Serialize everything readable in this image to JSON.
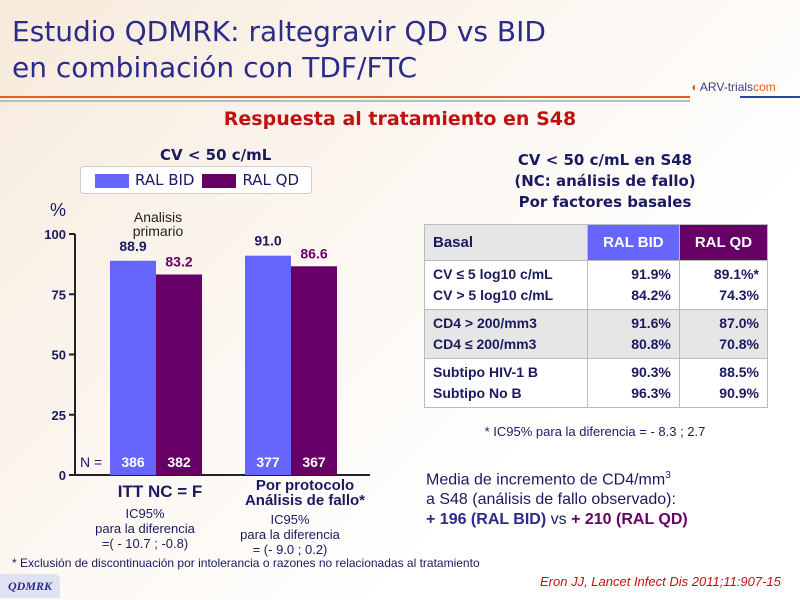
{
  "header": {
    "title_line1": "Estudio QDMRK: raltegravir QD vs BID",
    "title_line2": "en combinación con TDF/FTC",
    "logo_text": "ARV-trials",
    "logo_suffix": "com",
    "subtitle": "Respuesta al tratamiento en S48"
  },
  "colors": {
    "ral_bid": "#6666ff",
    "ral_qd": "#660066",
    "title": "#2b2b8c",
    "subtitle": "#c01010"
  },
  "chart_data": {
    "type": "bar",
    "title": "CV < 50 c/mL",
    "ylabel": "%",
    "ylim": [
      0,
      100
    ],
    "yticks": [
      0,
      25,
      50,
      75,
      100
    ],
    "categories": [
      "ITT NC = F",
      "Por protocolo Análisis de fallo*"
    ],
    "series": [
      {
        "name": "RAL BID",
        "values": [
          88.9,
          91.0
        ],
        "n": [
          386,
          377
        ]
      },
      {
        "name": "RAL QD",
        "values": [
          83.2,
          86.6
        ],
        "n": [
          382,
          367
        ]
      }
    ],
    "n_label": "N =",
    "annotation": "Analisis primario",
    "ci_notes": [
      [
        "IC95%",
        "para la diferencia",
        "=( - 10.7 ; -0.8)"
      ],
      [
        "IC95%",
        "para la diferencia",
        "= (- 9.0 ; 0.2)"
      ]
    ],
    "legend_placement": "top"
  },
  "table": {
    "title": [
      "CV < 50 c/mL en S48",
      "(NC: análisis de fallo)",
      "Por factores basales"
    ],
    "headers": [
      "Basal",
      "RAL BID",
      "RAL QD"
    ],
    "groups": [
      {
        "labels": [
          "CV ≤ 5 log10 c/mL",
          "CV > 5 log10 c/mL"
        ],
        "bid": [
          "91.9%",
          "84.2%"
        ],
        "qd": [
          "89.1%*",
          "74.3%"
        ]
      },
      {
        "labels": [
          "CD4 > 200/mm3",
          "CD4 ≤ 200/mm3"
        ],
        "bid": [
          "91.6%",
          "80.8%"
        ],
        "qd": [
          "87.0%",
          "70.8%"
        ]
      },
      {
        "labels": [
          "Subtipo HIV-1 B",
          "Subtipo No B"
        ],
        "bid": [
          "90.3%",
          "96.3%"
        ],
        "qd": [
          "88.5%",
          "90.9%"
        ]
      }
    ],
    "footnote": "* IC95% para la diferencia = - 8.3 ; 2.7"
  },
  "cd4": {
    "line1": "Media de incremento de CD4/mm",
    "line1_sup": "3",
    "line2": "a S48 (análisis de fallo observado):",
    "bid": "+ 196 (RAL BID)",
    "vs": " vs ",
    "qd": "+ 210 (RAL QD)"
  },
  "footer": {
    "footnote": "* Exclusión de discontinuación por intolerancia o razones no relacionadas al tratamiento",
    "citation": "Eron JJ, Lancet Infect Dis 2011;11:907-15",
    "badge": "QDMRK"
  }
}
